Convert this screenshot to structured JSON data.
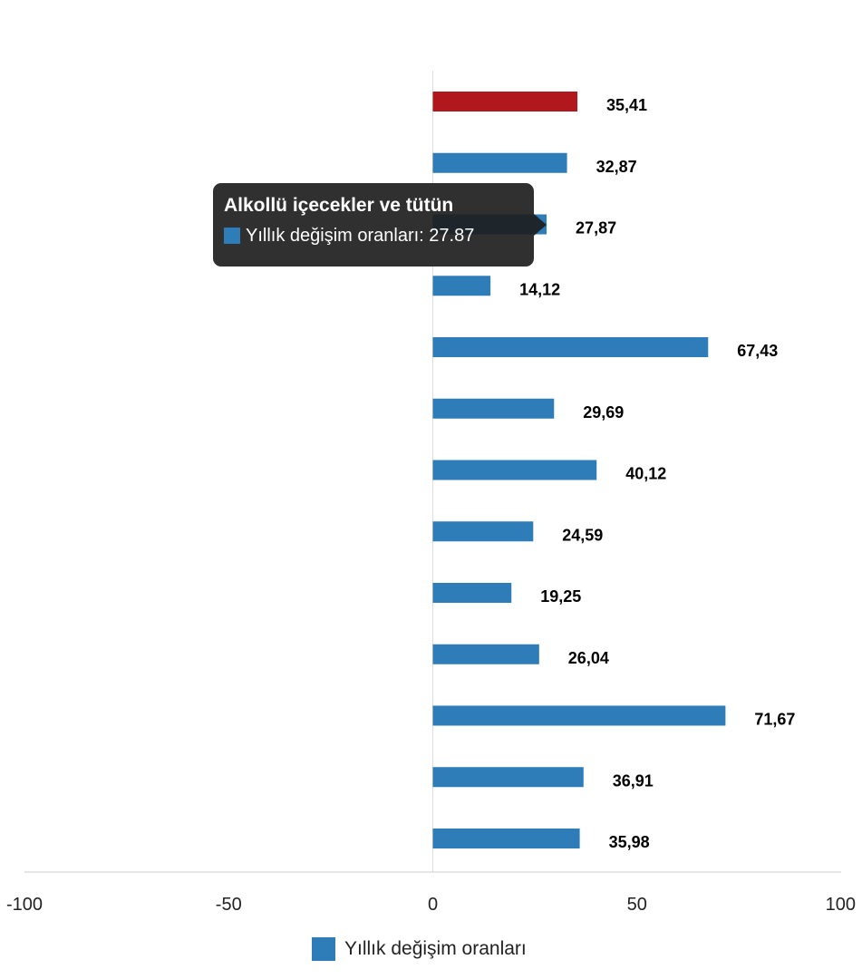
{
  "chart_data": {
    "type": "bar",
    "orientation": "horizontal",
    "categories": [
      "",
      "",
      "Alkollü içecekler ve tütün",
      "",
      "",
      "",
      "",
      "",
      "",
      "",
      "",
      "",
      ""
    ],
    "series": [
      {
        "name": "Yıllık değişim oranları",
        "values": [
          35.41,
          32.87,
          27.87,
          14.12,
          67.43,
          29.69,
          40.12,
          24.59,
          19.25,
          26.04,
          71.67,
          36.91,
          35.98
        ],
        "value_labels": [
          "35,41",
          "32,87",
          "27,87",
          "14,12",
          "67,43",
          "29,69",
          "40,12",
          "24,59",
          "19,25",
          "26,04",
          "71,67",
          "36,91",
          "35,98"
        ]
      }
    ],
    "highlight_index": 0,
    "xlim": [
      -100,
      100
    ],
    "x_ticks": [
      -100,
      -50,
      0,
      50,
      100
    ],
    "x_tick_labels": [
      "-100",
      "-50",
      "0",
      "50",
      "100"
    ],
    "legend_position": "bottom-center"
  },
  "tooltip": {
    "title": "Alkollü içecekler ve tütün",
    "series_name": "Yıllık değişim oranları",
    "text": "Yıllık değişim oranları: 27.87"
  },
  "legend": {
    "label": "Yıllık değişim oranları"
  },
  "colors": {
    "bar": "#2e7cb8",
    "highlight": "#b0181e",
    "axis": "#cccccc",
    "zero_line": "#dddddd"
  }
}
